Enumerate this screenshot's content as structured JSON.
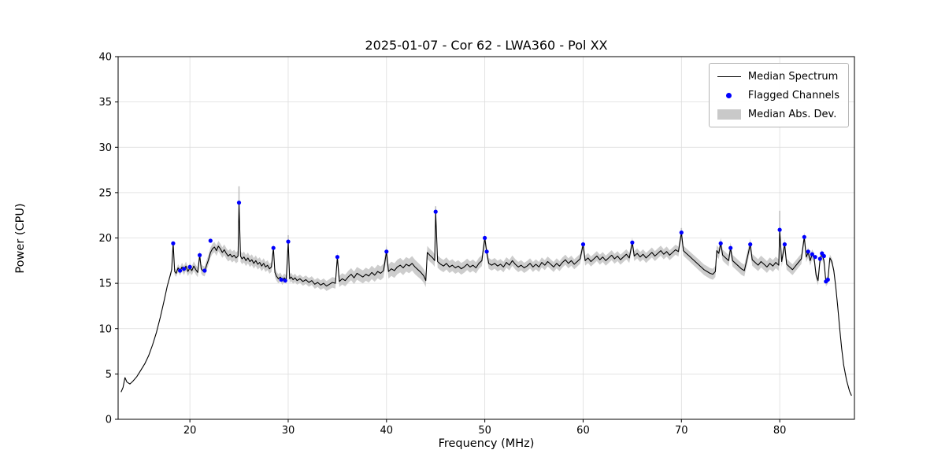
{
  "figure": {
    "title": "2025-01-07 - Cor 62 - LWA360 - Pol XX",
    "xlabel": "Frequency (MHz)",
    "ylabel": "Power (CPU)"
  },
  "chart_data": {
    "type": "line",
    "title": "2025-01-07 - Cor 62 - LWA360 - Pol XX",
    "xlabel": "Frequency (MHz)",
    "ylabel": "Power (CPU)",
    "xlim": [
      12.7,
      87.6
    ],
    "ylim": [
      0,
      40
    ],
    "xticks": [
      20,
      30,
      40,
      50,
      60,
      70,
      80
    ],
    "yticks": [
      0,
      5,
      10,
      15,
      20,
      25,
      30,
      35,
      40
    ],
    "grid": true,
    "legend": {
      "position": "upper right",
      "entries": [
        "Median Spectrum",
        "Flagged Channels",
        "Median Abs. Dev."
      ]
    },
    "colors": {
      "line": "#000000",
      "flagged": "#0000ff",
      "band": "#c0c0c0",
      "grid": "#dcdcdc",
      "axis": "#000000"
    },
    "series": {
      "median_spectrum": [
        [
          13.0,
          3.0
        ],
        [
          13.2,
          3.5
        ],
        [
          13.4,
          4.6
        ],
        [
          13.6,
          4.1
        ],
        [
          13.9,
          3.9
        ],
        [
          14.2,
          4.2
        ],
        [
          14.6,
          4.7
        ],
        [
          15.0,
          5.4
        ],
        [
          15.4,
          6.1
        ],
        [
          15.8,
          7.0
        ],
        [
          16.2,
          8.2
        ],
        [
          16.6,
          9.6
        ],
        [
          17.0,
          11.3
        ],
        [
          17.4,
          13.2
        ],
        [
          17.7,
          14.7
        ],
        [
          18.0,
          15.9
        ],
        [
          18.15,
          16.5
        ],
        [
          18.3,
          19.4
        ],
        [
          18.45,
          16.3
        ],
        [
          18.6,
          16.1
        ],
        [
          18.8,
          16.7
        ],
        [
          19.0,
          16.3
        ],
        [
          19.2,
          16.8
        ],
        [
          19.4,
          16.4
        ],
        [
          19.6,
          16.9
        ],
        [
          19.8,
          16.3
        ],
        [
          20.0,
          16.7
        ],
        [
          20.2,
          16.4
        ],
        [
          20.4,
          16.9
        ],
        [
          20.6,
          16.5
        ],
        [
          20.8,
          16.2
        ],
        [
          21.0,
          18.1
        ],
        [
          21.15,
          16.6
        ],
        [
          21.3,
          16.4
        ],
        [
          21.5,
          16.3
        ],
        [
          21.7,
          17.0
        ],
        [
          21.9,
          17.6
        ],
        [
          22.1,
          18.4
        ],
        [
          22.3,
          18.8
        ],
        [
          22.5,
          19.0
        ],
        [
          22.7,
          18.6
        ],
        [
          22.9,
          19.1
        ],
        [
          23.1,
          18.8
        ],
        [
          23.3,
          18.4
        ],
        [
          23.5,
          18.7
        ],
        [
          23.7,
          18.3
        ],
        [
          23.9,
          18.0
        ],
        [
          24.1,
          18.2
        ],
        [
          24.3,
          17.9
        ],
        [
          24.5,
          18.1
        ],
        [
          24.7,
          17.8
        ],
        [
          24.9,
          18.0
        ],
        [
          25.0,
          23.9
        ],
        [
          25.15,
          18.0
        ],
        [
          25.3,
          17.7
        ],
        [
          25.5,
          17.9
        ],
        [
          25.7,
          17.5
        ],
        [
          25.9,
          17.8
        ],
        [
          26.1,
          17.4
        ],
        [
          26.3,
          17.6
        ],
        [
          26.5,
          17.2
        ],
        [
          26.7,
          17.5
        ],
        [
          26.9,
          17.1
        ],
        [
          27.1,
          17.3
        ],
        [
          27.3,
          16.9
        ],
        [
          27.5,
          17.2
        ],
        [
          27.7,
          16.8
        ],
        [
          27.9,
          17.0
        ],
        [
          28.1,
          16.6
        ],
        [
          28.3,
          16.8
        ],
        [
          28.5,
          18.9
        ],
        [
          28.65,
          16.2
        ],
        [
          28.8,
          15.8
        ],
        [
          29.0,
          15.5
        ],
        [
          29.2,
          15.7
        ],
        [
          29.4,
          15.3
        ],
        [
          29.6,
          15.6
        ],
        [
          29.8,
          15.4
        ],
        [
          30.0,
          19.6
        ],
        [
          30.15,
          15.5
        ],
        [
          30.3,
          15.7
        ],
        [
          30.5,
          15.4
        ],
        [
          30.7,
          15.6
        ],
        [
          30.9,
          15.3
        ],
        [
          31.2,
          15.5
        ],
        [
          31.5,
          15.2
        ],
        [
          31.8,
          15.4
        ],
        [
          32.1,
          15.1
        ],
        [
          32.4,
          15.3
        ],
        [
          32.7,
          14.9
        ],
        [
          33.0,
          15.1
        ],
        [
          33.3,
          14.8
        ],
        [
          33.6,
          15.0
        ],
        [
          33.9,
          14.7
        ],
        [
          34.2,
          14.9
        ],
        [
          34.5,
          15.1
        ],
        [
          34.8,
          15.0
        ],
        [
          35.0,
          17.9
        ],
        [
          35.2,
          15.2
        ],
        [
          35.5,
          15.5
        ],
        [
          35.8,
          15.3
        ],
        [
          36.1,
          15.7
        ],
        [
          36.4,
          16.0
        ],
        [
          36.7,
          15.6
        ],
        [
          37.0,
          16.1
        ],
        [
          37.3,
          15.9
        ],
        [
          37.6,
          15.7
        ],
        [
          37.9,
          16.0
        ],
        [
          38.2,
          15.8
        ],
        [
          38.5,
          16.2
        ],
        [
          38.8,
          15.9
        ],
        [
          39.1,
          16.3
        ],
        [
          39.4,
          16.1
        ],
        [
          39.7,
          16.4
        ],
        [
          40.0,
          18.5
        ],
        [
          40.2,
          16.3
        ],
        [
          40.5,
          16.6
        ],
        [
          40.8,
          16.4
        ],
        [
          41.1,
          16.8
        ],
        [
          41.4,
          17.0
        ],
        [
          41.7,
          16.7
        ],
        [
          42.0,
          17.1
        ],
        [
          42.3,
          16.9
        ],
        [
          42.6,
          17.2
        ],
        [
          42.9,
          16.8
        ],
        [
          43.2,
          16.5
        ],
        [
          43.5,
          16.2
        ],
        [
          43.8,
          15.8
        ],
        [
          44.0,
          15.3
        ],
        [
          44.15,
          18.4
        ],
        [
          44.4,
          18.1
        ],
        [
          44.7,
          17.8
        ],
        [
          44.9,
          17.5
        ],
        [
          45.0,
          22.9
        ],
        [
          45.2,
          17.4
        ],
        [
          45.5,
          17.1
        ],
        [
          45.8,
          16.9
        ],
        [
          46.1,
          17.2
        ],
        [
          46.4,
          16.8
        ],
        [
          46.7,
          17.0
        ],
        [
          47.0,
          16.7
        ],
        [
          47.3,
          16.9
        ],
        [
          47.6,
          16.6
        ],
        [
          47.9,
          16.8
        ],
        [
          48.2,
          17.1
        ],
        [
          48.5,
          16.8
        ],
        [
          48.8,
          17.0
        ],
        [
          49.1,
          16.7
        ],
        [
          49.4,
          17.2
        ],
        [
          49.7,
          17.5
        ],
        [
          50.0,
          20.0
        ],
        [
          50.2,
          18.4
        ],
        [
          50.4,
          17.2
        ],
        [
          50.7,
          17.0
        ],
        [
          51.0,
          17.2
        ],
        [
          51.3,
          16.9
        ],
        [
          51.6,
          17.1
        ],
        [
          51.9,
          16.8
        ],
        [
          52.2,
          17.3
        ],
        [
          52.5,
          17.0
        ],
        [
          52.8,
          17.5
        ],
        [
          53.1,
          17.1
        ],
        [
          53.4,
          16.8
        ],
        [
          53.7,
          17.0
        ],
        [
          54.0,
          16.7
        ],
        [
          54.3,
          16.9
        ],
        [
          54.6,
          17.2
        ],
        [
          54.9,
          16.8
        ],
        [
          55.2,
          17.1
        ],
        [
          55.5,
          16.8
        ],
        [
          55.8,
          17.3
        ],
        [
          56.1,
          17.0
        ],
        [
          56.4,
          17.4
        ],
        [
          56.7,
          17.1
        ],
        [
          57.0,
          16.8
        ],
        [
          57.3,
          17.2
        ],
        [
          57.6,
          16.9
        ],
        [
          57.9,
          17.3
        ],
        [
          58.2,
          17.6
        ],
        [
          58.5,
          17.2
        ],
        [
          58.8,
          17.5
        ],
        [
          59.1,
          17.1
        ],
        [
          59.4,
          17.4
        ],
        [
          59.7,
          17.7
        ],
        [
          60.0,
          19.3
        ],
        [
          60.2,
          17.5
        ],
        [
          60.5,
          17.8
        ],
        [
          60.8,
          17.4
        ],
        [
          61.1,
          17.7
        ],
        [
          61.4,
          18.0
        ],
        [
          61.7,
          17.6
        ],
        [
          62.0,
          17.9
        ],
        [
          62.3,
          17.5
        ],
        [
          62.6,
          17.8
        ],
        [
          62.9,
          18.1
        ],
        [
          63.2,
          17.7
        ],
        [
          63.5,
          18.0
        ],
        [
          63.8,
          17.6
        ],
        [
          64.1,
          17.9
        ],
        [
          64.4,
          18.2
        ],
        [
          64.7,
          17.8
        ],
        [
          65.0,
          19.5
        ],
        [
          65.2,
          18.0
        ],
        [
          65.5,
          18.3
        ],
        [
          65.8,
          17.9
        ],
        [
          66.1,
          18.2
        ],
        [
          66.4,
          17.8
        ],
        [
          66.7,
          18.1
        ],
        [
          67.0,
          18.4
        ],
        [
          67.3,
          18.0
        ],
        [
          67.6,
          18.3
        ],
        [
          67.9,
          18.6
        ],
        [
          68.2,
          18.2
        ],
        [
          68.5,
          18.5
        ],
        [
          68.8,
          18.1
        ],
        [
          69.1,
          18.4
        ],
        [
          69.4,
          18.7
        ],
        [
          69.7,
          18.5
        ],
        [
          70.0,
          20.6
        ],
        [
          70.2,
          18.6
        ],
        [
          70.5,
          18.3
        ],
        [
          70.8,
          18.0
        ],
        [
          71.1,
          17.7
        ],
        [
          71.4,
          17.4
        ],
        [
          71.7,
          17.1
        ],
        [
          72.0,
          16.8
        ],
        [
          72.3,
          16.5
        ],
        [
          72.6,
          16.3
        ],
        [
          72.9,
          16.1
        ],
        [
          73.2,
          16.0
        ],
        [
          73.45,
          16.3
        ],
        [
          73.6,
          18.6
        ],
        [
          73.8,
          18.3
        ],
        [
          74.0,
          19.4
        ],
        [
          74.2,
          18.1
        ],
        [
          74.5,
          17.8
        ],
        [
          74.8,
          17.5
        ],
        [
          75.0,
          18.9
        ],
        [
          75.2,
          17.5
        ],
        [
          75.5,
          17.2
        ],
        [
          75.8,
          16.9
        ],
        [
          76.1,
          16.6
        ],
        [
          76.4,
          16.4
        ],
        [
          76.7,
          17.8
        ],
        [
          77.0,
          19.3
        ],
        [
          77.2,
          17.6
        ],
        [
          77.5,
          17.3
        ],
        [
          77.8,
          17.0
        ],
        [
          78.1,
          17.4
        ],
        [
          78.4,
          17.1
        ],
        [
          78.7,
          16.8
        ],
        [
          79.0,
          17.2
        ],
        [
          79.3,
          16.9
        ],
        [
          79.6,
          17.3
        ],
        [
          79.9,
          17.0
        ],
        [
          80.0,
          20.9
        ],
        [
          80.2,
          17.4
        ],
        [
          80.5,
          19.3
        ],
        [
          80.7,
          17.1
        ],
        [
          81.0,
          16.8
        ],
        [
          81.3,
          16.5
        ],
        [
          81.6,
          16.9
        ],
        [
          81.9,
          17.3
        ],
        [
          82.2,
          17.7
        ],
        [
          82.5,
          20.1
        ],
        [
          82.7,
          17.9
        ],
        [
          82.9,
          18.4
        ],
        [
          83.1,
          17.5
        ],
        [
          83.3,
          18.2
        ],
        [
          83.5,
          17.8
        ],
        [
          83.7,
          15.9
        ],
        [
          83.9,
          15.3
        ],
        [
          84.1,
          17.6
        ],
        [
          84.3,
          18.2
        ],
        [
          84.5,
          17.5
        ],
        [
          84.7,
          15.1
        ],
        [
          84.9,
          15.4
        ],
        [
          85.1,
          17.8
        ],
        [
          85.3,
          17.4
        ],
        [
          85.5,
          16.4
        ],
        [
          85.7,
          14.6
        ],
        [
          85.9,
          12.4
        ],
        [
          86.1,
          10.0
        ],
        [
          86.3,
          7.8
        ],
        [
          86.5,
          6.0
        ],
        [
          86.8,
          4.3
        ],
        [
          87.1,
          3.1
        ],
        [
          87.3,
          2.6
        ]
      ],
      "mad_halfwidth": [
        [
          12.7,
          0
        ],
        [
          17.6,
          0
        ],
        [
          18.2,
          0.35
        ],
        [
          19.5,
          0.5
        ],
        [
          22.0,
          0.55
        ],
        [
          24.0,
          0.6
        ],
        [
          26.0,
          0.6
        ],
        [
          28.0,
          0.55
        ],
        [
          29.0,
          0.5
        ],
        [
          31.0,
          0.45
        ],
        [
          33.0,
          0.5
        ],
        [
          35.0,
          0.6
        ],
        [
          37.0,
          0.7
        ],
        [
          39.0,
          0.75
        ],
        [
          41.0,
          0.8
        ],
        [
          43.0,
          0.8
        ],
        [
          44.5,
          0.7
        ],
        [
          47.0,
          0.65
        ],
        [
          50.0,
          0.6
        ],
        [
          55.0,
          0.55
        ],
        [
          60.0,
          0.55
        ],
        [
          65.0,
          0.55
        ],
        [
          70.0,
          0.55
        ],
        [
          73.0,
          0.6
        ],
        [
          76.0,
          0.65
        ],
        [
          79.0,
          0.65
        ],
        [
          81.0,
          0.6
        ],
        [
          83.0,
          0.55
        ],
        [
          84.5,
          0.5
        ],
        [
          85.3,
          0.35
        ],
        [
          85.9,
          0.15
        ],
        [
          87.3,
          0
        ]
      ],
      "flagged_channels": [
        [
          18.3,
          19.4
        ],
        [
          19.0,
          16.4
        ],
        [
          19.4,
          16.6
        ],
        [
          20.0,
          16.8
        ],
        [
          21.0,
          18.1
        ],
        [
          21.5,
          16.4
        ],
        [
          22.1,
          19.7
        ],
        [
          25.0,
          23.9
        ],
        [
          28.5,
          18.9
        ],
        [
          29.3,
          15.4
        ],
        [
          29.7,
          15.3
        ],
        [
          30.0,
          19.6
        ],
        [
          35.0,
          17.9
        ],
        [
          40.0,
          18.5
        ],
        [
          45.0,
          22.9
        ],
        [
          50.0,
          20.0
        ],
        [
          50.2,
          18.5
        ],
        [
          60.0,
          19.3
        ],
        [
          65.0,
          19.5
        ],
        [
          70.0,
          20.6
        ],
        [
          74.0,
          19.4
        ],
        [
          75.0,
          18.9
        ],
        [
          77.0,
          19.3
        ],
        [
          80.0,
          20.9
        ],
        [
          80.5,
          19.3
        ],
        [
          82.5,
          20.1
        ],
        [
          82.9,
          18.5
        ],
        [
          83.3,
          18.2
        ],
        [
          83.6,
          17.9
        ],
        [
          84.1,
          17.7
        ],
        [
          84.3,
          18.3
        ],
        [
          84.5,
          18.0
        ],
        [
          84.7,
          15.2
        ],
        [
          84.9,
          15.4
        ]
      ],
      "whiskers": [
        [
          25.0,
          23.9,
          25.7
        ],
        [
          30.0,
          19.6,
          20.3
        ],
        [
          45.0,
          22.9,
          23.5
        ],
        [
          70.0,
          20.6,
          21.1
        ],
        [
          80.0,
          20.9,
          23.0
        ]
      ]
    }
  }
}
